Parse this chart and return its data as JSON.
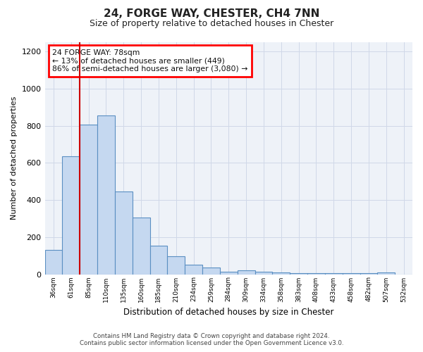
{
  "title_line1": "24, FORGE WAY, CHESTER, CH4 7NN",
  "title_line2": "Size of property relative to detached houses in Chester",
  "xlabel": "Distribution of detached houses by size in Chester",
  "ylabel": "Number of detached properties",
  "annotation_line1": "24 FORGE WAY: 78sqm",
  "annotation_line2": "← 13% of detached houses are smaller (449)",
  "annotation_line3": "86% of semi-detached houses are larger (3,080) →",
  "footer_line1": "Contains HM Land Registry data © Crown copyright and database right 2024.",
  "footer_line2": "Contains public sector information licensed under the Open Government Licence v3.0.",
  "categories": [
    "36sqm",
    "61sqm",
    "85sqm",
    "110sqm",
    "135sqm",
    "160sqm",
    "185sqm",
    "210sqm",
    "234sqm",
    "259sqm",
    "284sqm",
    "309sqm",
    "334sqm",
    "358sqm",
    "383sqm",
    "408sqm",
    "433sqm",
    "458sqm",
    "482sqm",
    "507sqm",
    "532sqm"
  ],
  "values": [
    130,
    635,
    805,
    855,
    445,
    305,
    155,
    95,
    50,
    35,
    15,
    20,
    15,
    10,
    5,
    5,
    5,
    5,
    5,
    10,
    0
  ],
  "bar_color": "#c5d8f0",
  "bar_edge_color": "#5a8fc2",
  "red_line_index": 2,
  "highlight_color": "#cc0000",
  "ylim": [
    0,
    1250
  ],
  "yticks": [
    0,
    200,
    400,
    600,
    800,
    1000,
    1200
  ],
  "background_color": "#ffffff",
  "grid_color": "#d0d8e8",
  "plot_bg_color": "#eef2f8"
}
